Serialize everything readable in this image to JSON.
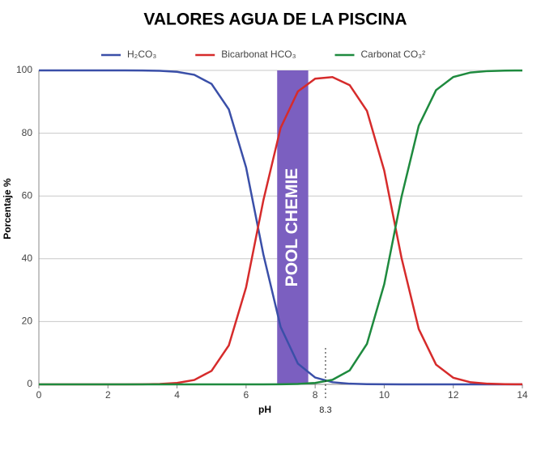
{
  "chart_data": {
    "type": "line",
    "title": "VALORES AGUA DE LA PISCINA",
    "x_label": "pH",
    "y_label": "Porcentaje %",
    "x": [
      0,
      0.5,
      1,
      1.5,
      2,
      2.5,
      3,
      3.5,
      4,
      4.5,
      5,
      5.5,
      6,
      6.5,
      7,
      7.5,
      8,
      8.5,
      9,
      9.5,
      10,
      10.5,
      11,
      11.5,
      12,
      12.5,
      13,
      13.5,
      14
    ],
    "series": [
      {
        "name": "H₂CO₃",
        "color": "#3a4fa8",
        "values": [
          100,
          100,
          100,
          100,
          100,
          99.99,
          99.96,
          99.86,
          99.55,
          98.6,
          95.7,
          87.6,
          69.1,
          41.4,
          18.3,
          6.6,
          2.18,
          0.69,
          0.21,
          0.06,
          0.02,
          0,
          0,
          0,
          0,
          0,
          0,
          0,
          0
        ]
      },
      {
        "name": "Bicarbonat HCO₃",
        "color": "#d62b2b",
        "values": [
          0,
          0,
          0,
          0,
          0,
          0.01,
          0.04,
          0.14,
          0.45,
          1.4,
          4.3,
          12.4,
          30.9,
          58.6,
          81.7,
          93.3,
          97.36,
          97.86,
          95.3,
          87.1,
          68.1,
          40.3,
          17.6,
          6.3,
          2.1,
          0.67,
          0.21,
          0.07,
          0.02
        ]
      },
      {
        "name": "Carbonat CO₃²",
        "color": "#1e8a3e",
        "values": [
          0,
          0,
          0,
          0,
          0,
          0,
          0,
          0,
          0,
          0,
          0,
          0,
          0,
          0.01,
          0.04,
          0.14,
          0.46,
          1.45,
          4.46,
          12.9,
          31.9,
          59.7,
          82.4,
          93.7,
          97.9,
          99.33,
          99.79,
          99.93,
          99.98
        ]
      }
    ],
    "band": {
      "from": 6.9,
      "to": 7.8,
      "label": "POOL CHEMIE",
      "color": "#7b5fc0"
    },
    "marker": 8.3,
    "xlim": [
      0,
      14
    ],
    "xticks": [
      0,
      2,
      4,
      6,
      8,
      10,
      12,
      14
    ],
    "ylim": [
      0,
      100
    ],
    "yticks": [
      0,
      20,
      40,
      60,
      80,
      100
    ],
    "grid": true
  }
}
